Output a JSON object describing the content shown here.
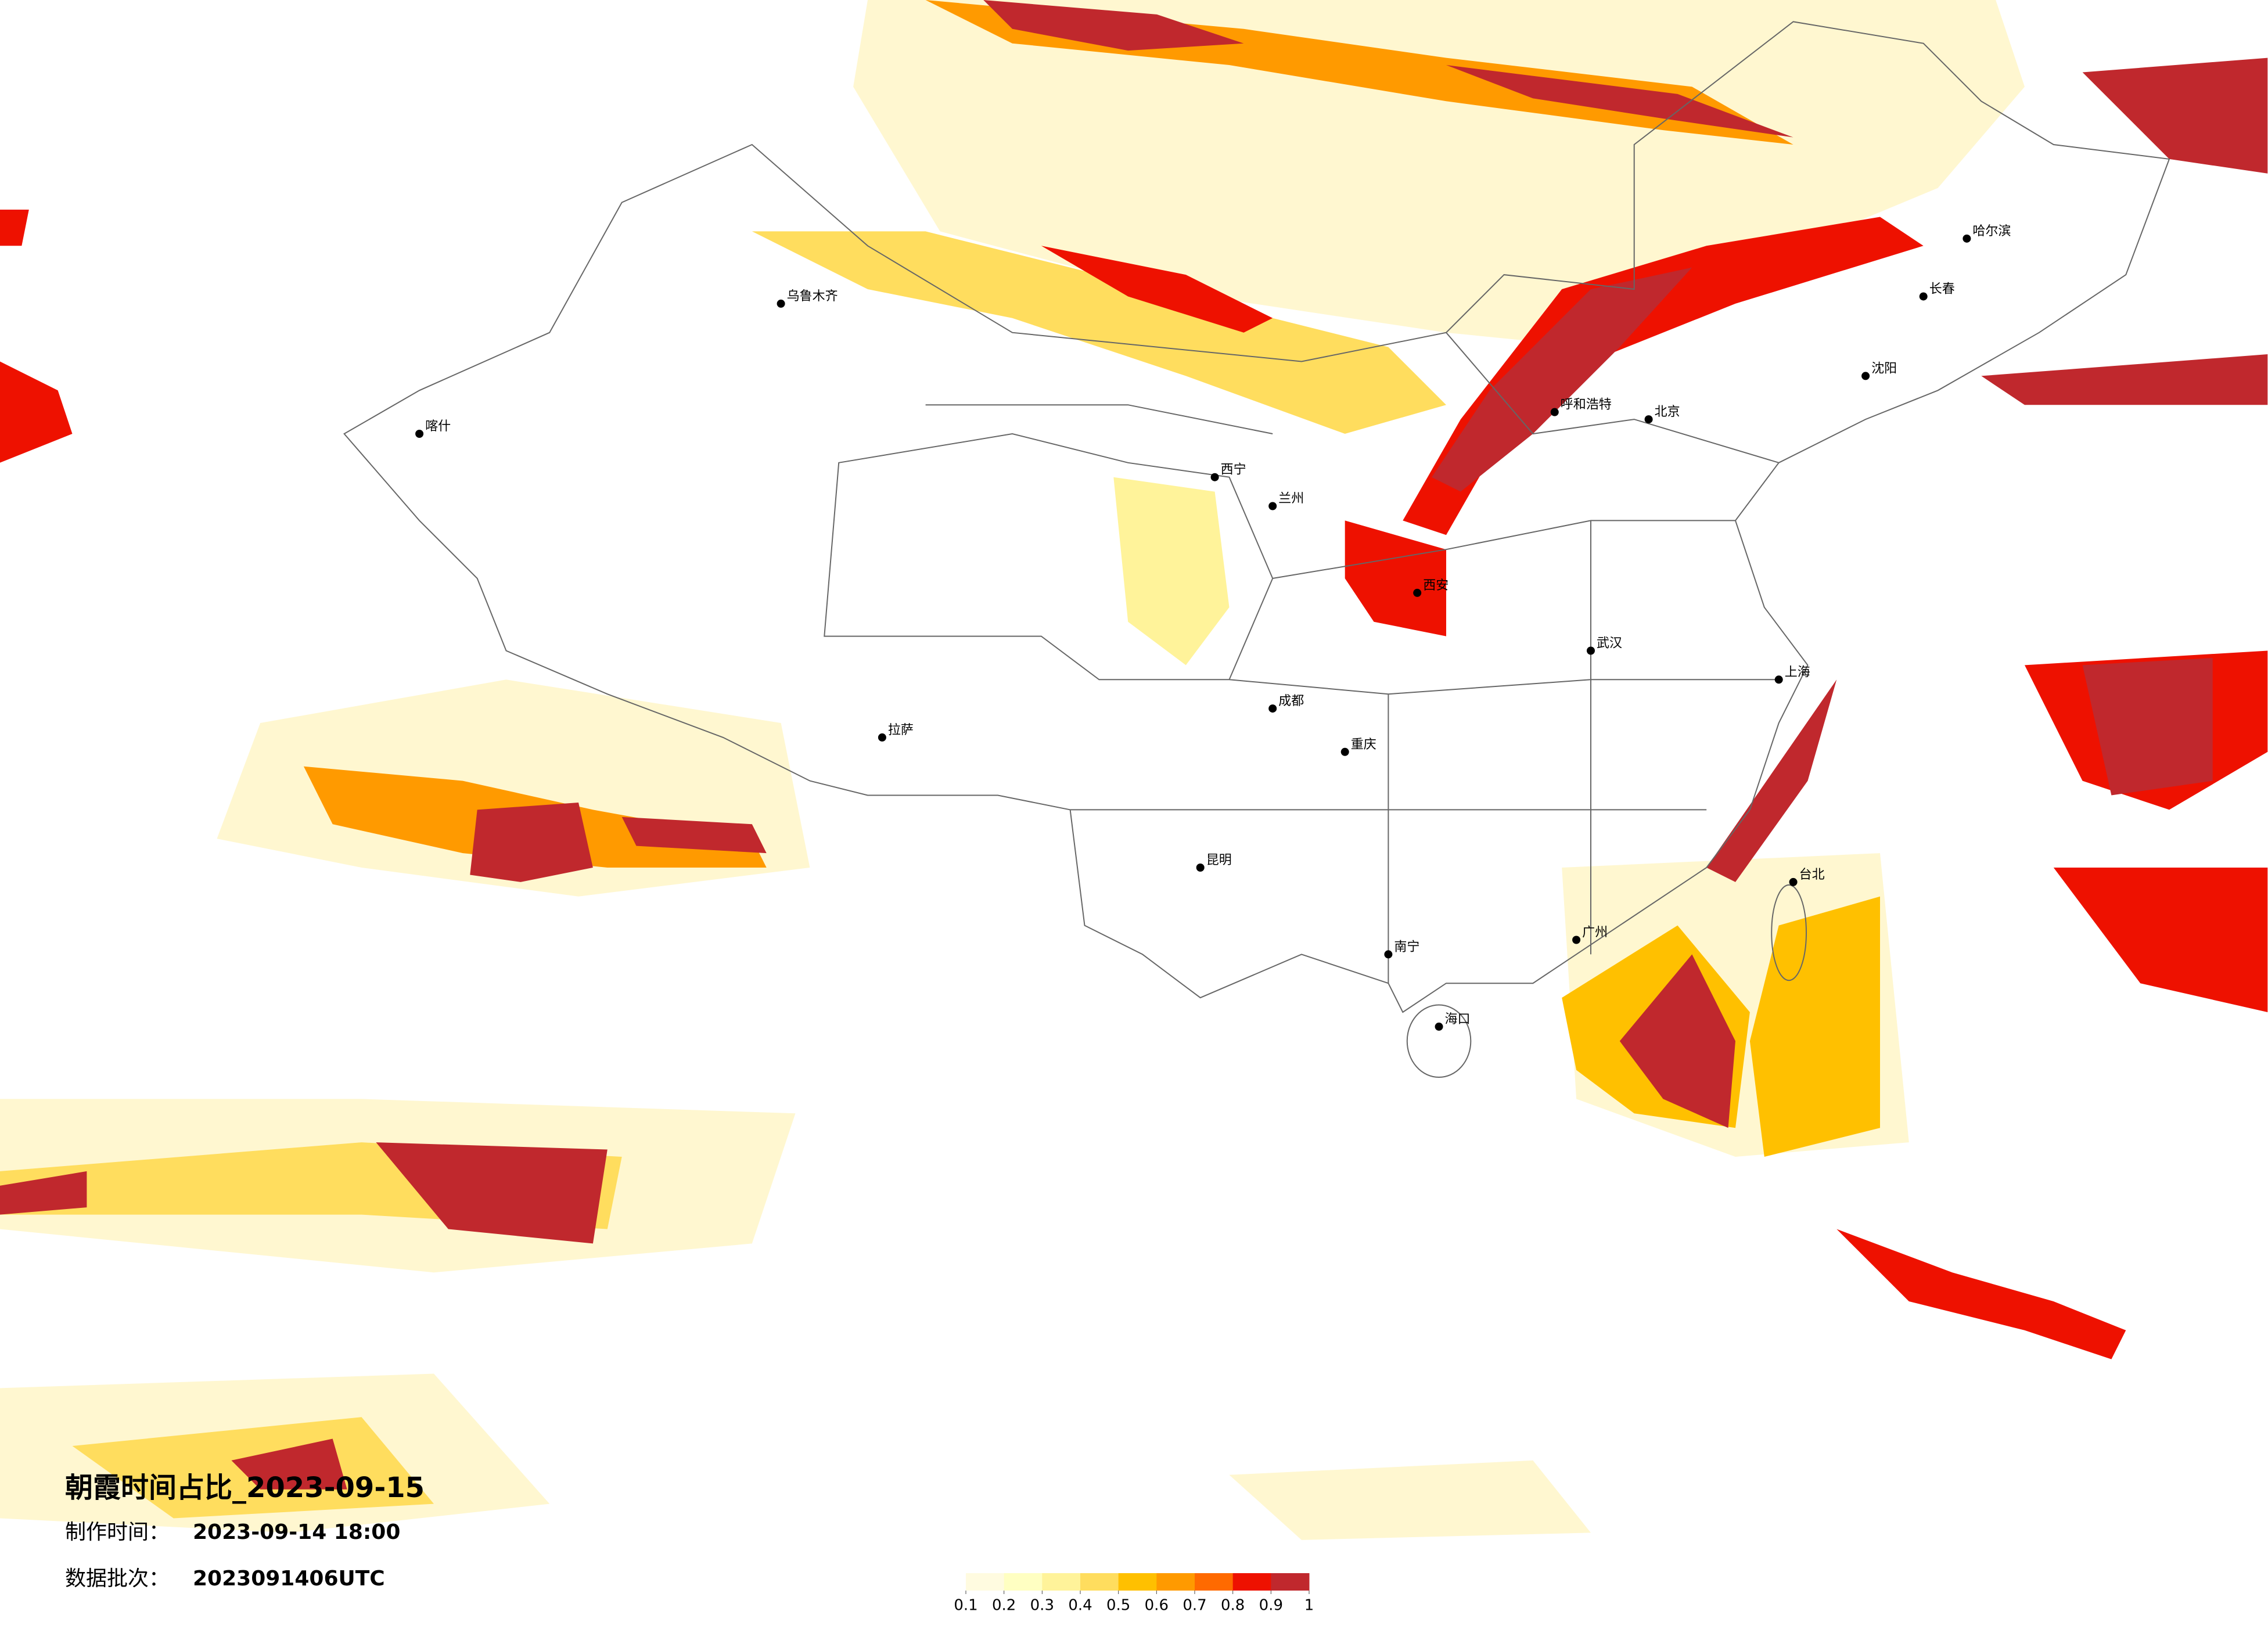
{
  "header": {
    "title": "朝霞时间占比_2023-09-15",
    "made_label": "制作时间：",
    "made_value": "2023-09-14 18:00",
    "batch_label": "数据批次：",
    "batch_value": "2023091406UTC"
  },
  "legend": {
    "colors": [
      "#fffbe0",
      "#ffffc2",
      "#fff39a",
      "#ffdd5e",
      "#ffc000",
      "#ff9a00",
      "#ff6a00",
      "#ee1100",
      "#c0282d"
    ],
    "ticks": [
      0.1,
      0.2,
      0.3,
      0.4,
      0.5,
      0.6,
      0.7,
      0.8,
      0.9,
      1
    ]
  },
  "cities": [
    "乌鲁木齐",
    "拉萨",
    "西宁",
    "兰州",
    "呼和浩特",
    "北京",
    "哈尔滨",
    "长春",
    "沈阳",
    "西安",
    "成都",
    "重庆",
    "武汉",
    "上海",
    "广州",
    "昆明",
    "南宁",
    "海口",
    "台北",
    "喀什"
  ]
}
